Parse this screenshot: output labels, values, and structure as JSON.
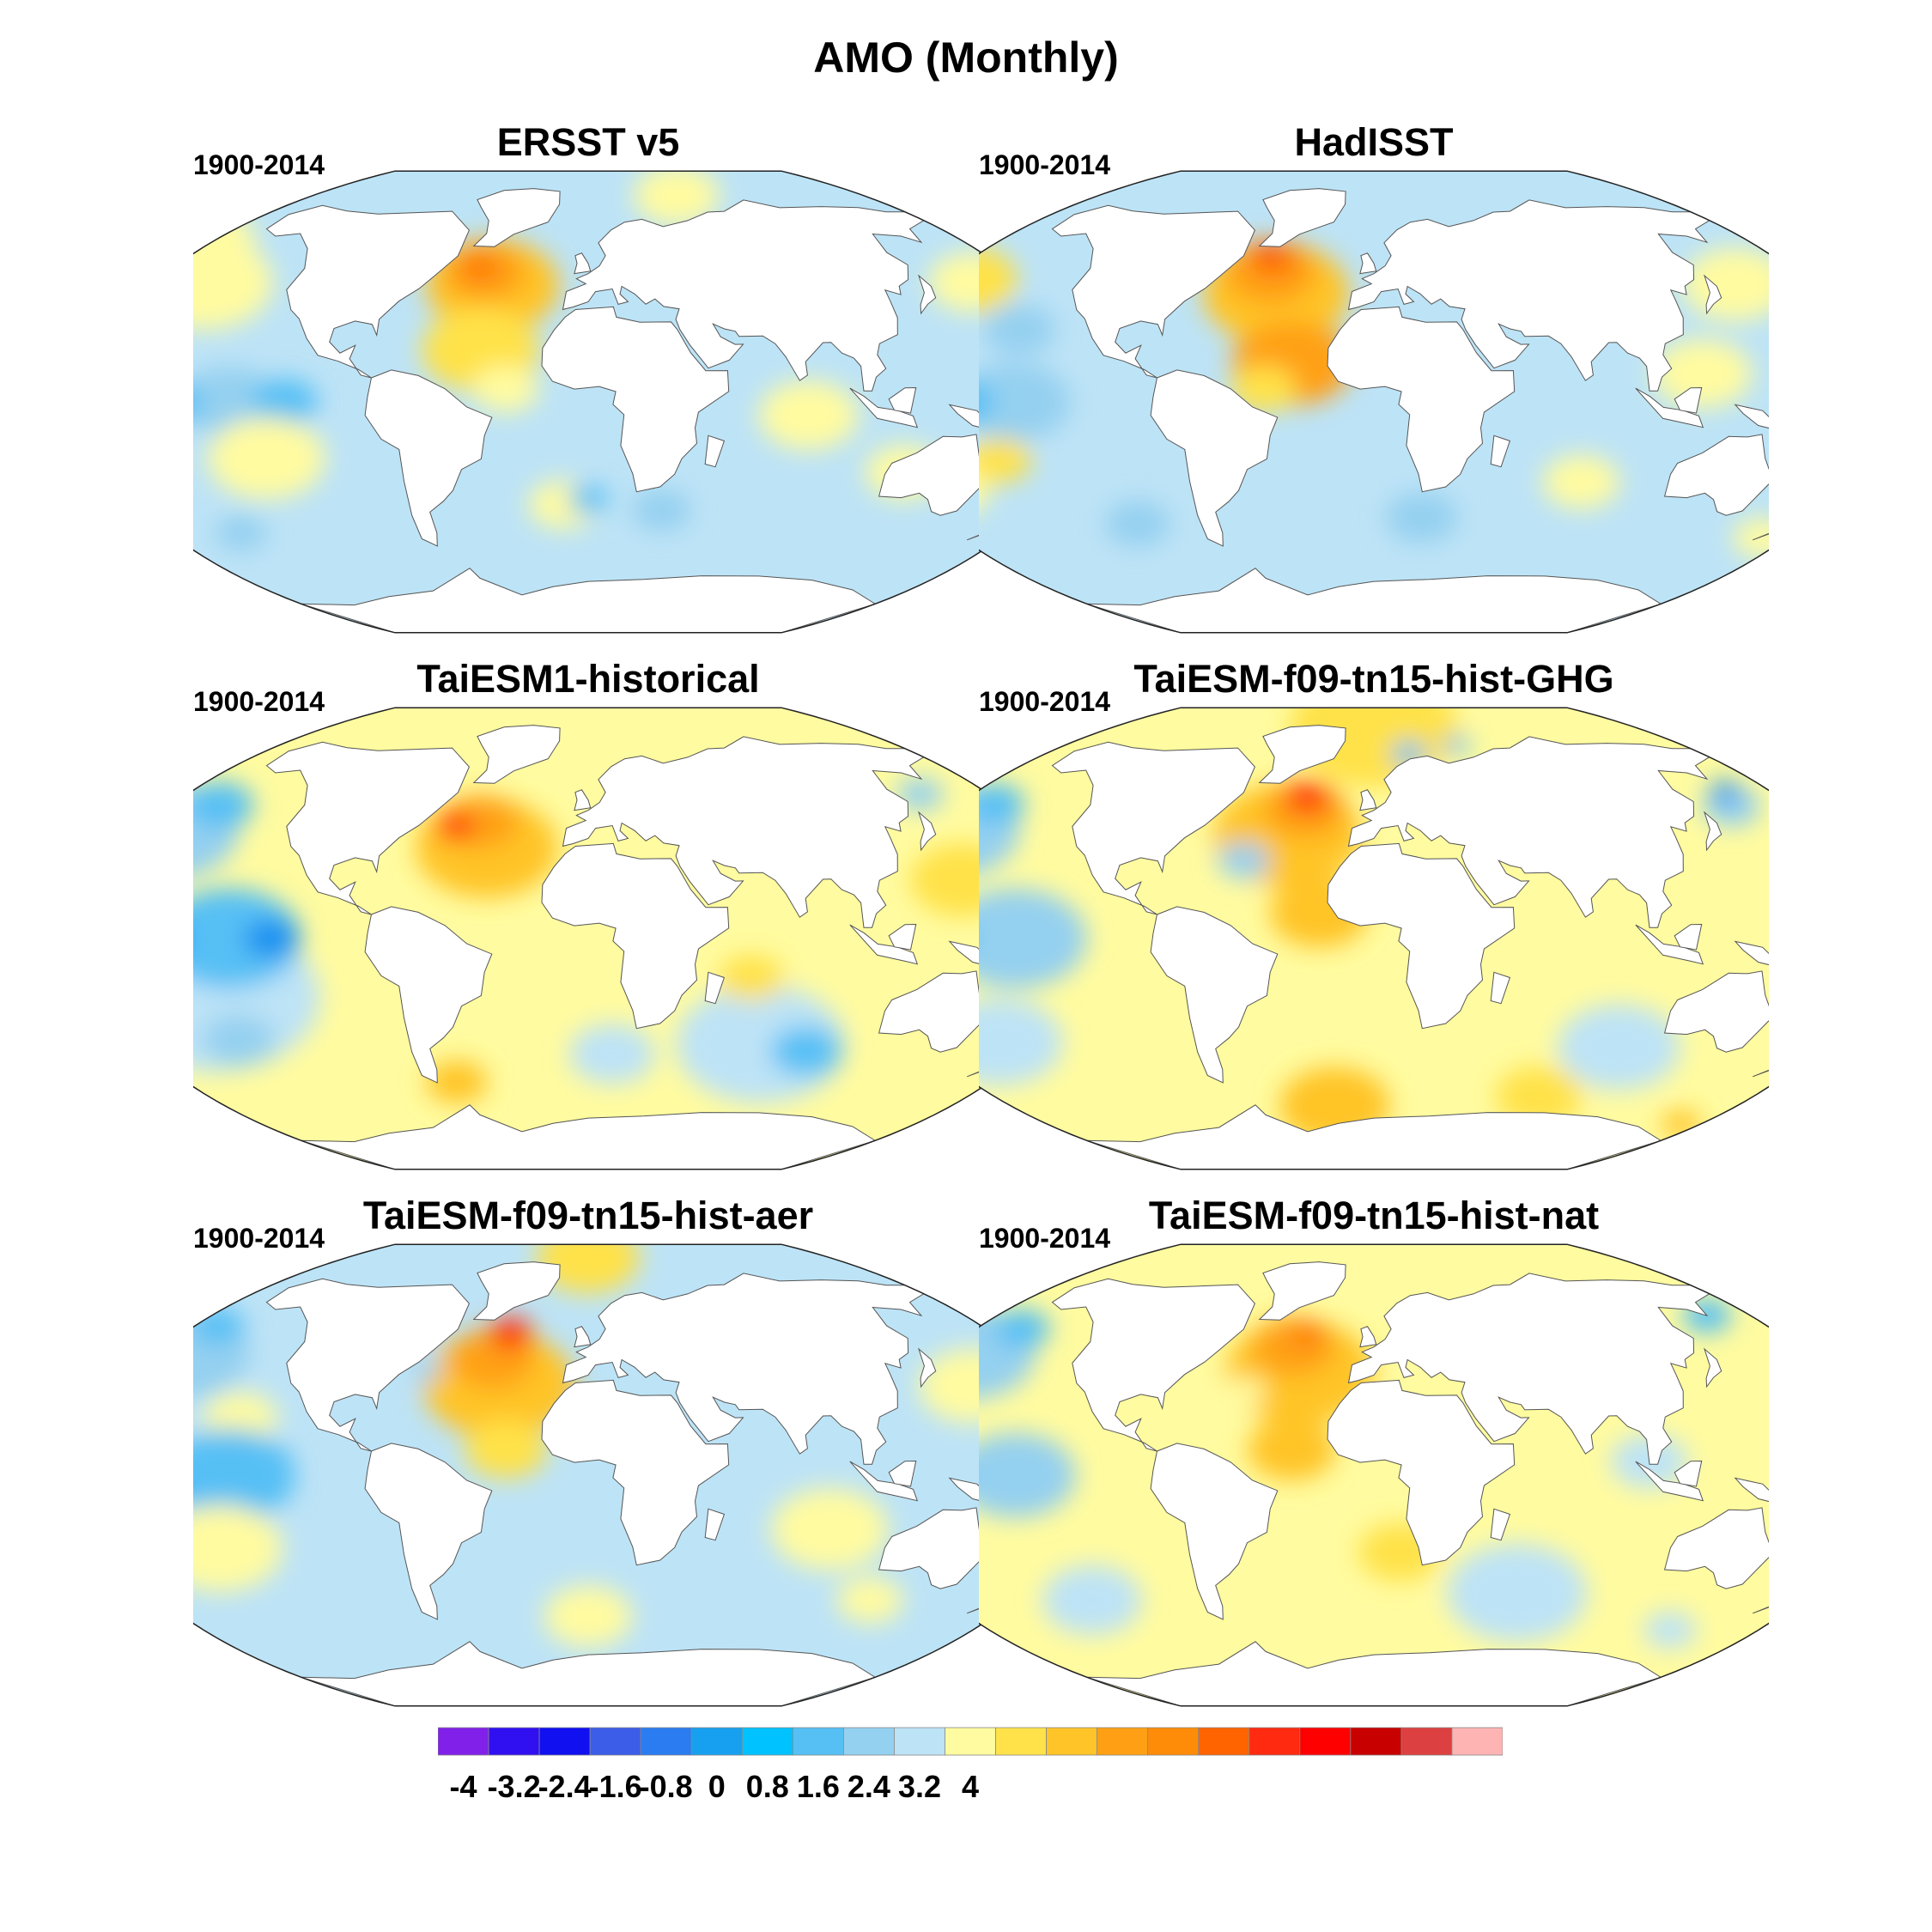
{
  "title": "AMO (Monthly)",
  "ocean_colors": {
    "neg_strong": "#1890f0",
    "neg_medium": "#56c0f5",
    "neg_light": "#94d0f0",
    "neg_pale": "#bde3f6",
    "pos_pale": "#fffba0",
    "pos_light": "#ffe24a",
    "pos_medium": "#ffc428",
    "pos_orange": "#ffa014",
    "pos_deep": "#ff7808",
    "pos_red": "#ff2a10",
    "land": "#ffffff",
    "coast": "#555555"
  },
  "panels": [
    {
      "id": "ersst",
      "title": "ERSST v5",
      "period": "1900-2014",
      "base": "neg_pale",
      "blobs": [
        {
          "lon": -40,
          "lat": 45,
          "r": 28,
          "c": "pos_medium"
        },
        {
          "lon": -45,
          "lat": 50,
          "r": 18,
          "c": "pos_orange"
        },
        {
          "lon": -48,
          "lat": 52,
          "r": 9,
          "c": "pos_deep"
        },
        {
          "lon": -40,
          "lat": 20,
          "r": 22,
          "c": "pos_light"
        },
        {
          "lon": -30,
          "lat": 5,
          "r": 12,
          "c": "pos_pale"
        },
        {
          "lon": -160,
          "lat": 40,
          "r": 30,
          "c": "pos_pale"
        },
        {
          "lon": 160,
          "lat": 40,
          "r": 20,
          "c": "pos_pale"
        },
        {
          "lon": -180,
          "lat": 55,
          "r": 20,
          "c": "pos_pale"
        },
        {
          "lon": 60,
          "lat": 80,
          "r": 30,
          "c": "pos_pale"
        },
        {
          "lon": -130,
          "lat": 0,
          "r": 18,
          "c": "neg_light"
        },
        {
          "lon": -150,
          "lat": 0,
          "r": 10,
          "c": "neg_medium"
        },
        {
          "lon": -110,
          "lat": 0,
          "r": 12,
          "c": "neg_medium"
        },
        {
          "lon": 170,
          "lat": 0,
          "r": 10,
          "c": "neg_light"
        },
        {
          "lon": -120,
          "lat": -20,
          "r": 22,
          "c": "pos_pale"
        },
        {
          "lon": 80,
          "lat": -5,
          "r": 18,
          "c": "pos_pale"
        },
        {
          "lon": 120,
          "lat": -25,
          "r": 15,
          "c": "pos_pale"
        },
        {
          "lon": -10,
          "lat": -40,
          "r": 14,
          "c": "pos_pale"
        },
        {
          "lon": 30,
          "lat": -42,
          "r": 12,
          "c": "neg_light"
        },
        {
          "lon": 0,
          "lat": -38,
          "r": 8,
          "c": "neg_medium"
        },
        {
          "lon": -150,
          "lat": -45,
          "r": 12,
          "c": "neg_light"
        }
      ]
    },
    {
      "id": "hadisst",
      "title": "HadISST",
      "period": "1900-2014",
      "base": "neg_pale",
      "blobs": [
        {
          "lon": -40,
          "lat": 42,
          "r": 30,
          "c": "pos_medium"
        },
        {
          "lon": -45,
          "lat": 50,
          "r": 20,
          "c": "pos_orange"
        },
        {
          "lon": -45,
          "lat": 55,
          "r": 11,
          "c": "pos_deep"
        },
        {
          "lon": -50,
          "lat": 57,
          "r": 6,
          "c": "pos_red"
        },
        {
          "lon": -30,
          "lat": 15,
          "r": 22,
          "c": "pos_orange"
        },
        {
          "lon": -40,
          "lat": 5,
          "r": 12,
          "c": "pos_light"
        },
        {
          "lon": -170,
          "lat": 40,
          "r": 22,
          "c": "pos_light"
        },
        {
          "lon": 150,
          "lat": 40,
          "r": 24,
          "c": "pos_pale"
        },
        {
          "lon": 120,
          "lat": 10,
          "r": 18,
          "c": "pos_pale"
        },
        {
          "lon": -135,
          "lat": 25,
          "r": 14,
          "c": "neg_light"
        },
        {
          "lon": -130,
          "lat": 0,
          "r": 20,
          "c": "neg_light"
        },
        {
          "lon": -150,
          "lat": 0,
          "r": 12,
          "c": "neg_medium"
        },
        {
          "lon": -170,
          "lat": -25,
          "r": 25,
          "c": "pos_pale"
        },
        {
          "lon": -140,
          "lat": -20,
          "r": 12,
          "c": "pos_light"
        },
        {
          "lon": 80,
          "lat": -30,
          "r": 15,
          "c": "pos_pale"
        },
        {
          "lon": 20,
          "lat": -45,
          "r": 15,
          "c": "neg_light"
        },
        {
          "lon": 170,
          "lat": -45,
          "r": 15,
          "c": "pos_pale"
        },
        {
          "lon": -100,
          "lat": -45,
          "r": 14,
          "c": "neg_light"
        }
      ]
    },
    {
      "id": "taiesm1",
      "title": "TaiESM1-historical",
      "period": "1900-2014",
      "base": "pos_pale",
      "blobs": [
        {
          "lon": -170,
          "lat": 35,
          "r": 30,
          "c": "neg_light"
        },
        {
          "lon": -160,
          "lat": 45,
          "r": 16,
          "c": "neg_medium"
        },
        {
          "lon": -140,
          "lat": -20,
          "r": 40,
          "c": "neg_pale"
        },
        {
          "lon": -140,
          "lat": -35,
          "r": 15,
          "c": "neg_light"
        },
        {
          "lon": -130,
          "lat": 0,
          "r": 26,
          "c": "neg_medium"
        },
        {
          "lon": -160,
          "lat": 0,
          "r": 14,
          "c": "neg_strong"
        },
        {
          "lon": -115,
          "lat": 0,
          "r": 10,
          "c": "neg_strong"
        },
        {
          "lon": 170,
          "lat": 0,
          "r": 14,
          "c": "neg_medium"
        },
        {
          "lon": 70,
          "lat": -40,
          "r": 35,
          "c": "neg_pale"
        },
        {
          "lon": 90,
          "lat": -42,
          "r": 15,
          "c": "neg_medium"
        },
        {
          "lon": 10,
          "lat": -45,
          "r": 18,
          "c": "neg_pale"
        },
        {
          "lon": 150,
          "lat": 50,
          "r": 12,
          "c": "neg_light"
        },
        {
          "lon": -40,
          "lat": 35,
          "r": 28,
          "c": "pos_medium"
        },
        {
          "lon": -45,
          "lat": 45,
          "r": 16,
          "c": "pos_orange"
        },
        {
          "lon": -55,
          "lat": 43,
          "r": 8,
          "c": "pos_red"
        },
        {
          "lon": 140,
          "lat": 20,
          "r": 20,
          "c": "pos_light"
        },
        {
          "lon": -60,
          "lat": -55,
          "r": 14,
          "c": "pos_medium"
        },
        {
          "lon": 60,
          "lat": -15,
          "r": 12,
          "c": "pos_light"
        }
      ]
    },
    {
      "id": "ghg",
      "title": "TaiESM-f09-tn15-hist-GHG",
      "period": "1900-2014",
      "base": "pos_pale",
      "blobs": [
        {
          "lon": 0,
          "lat": 82,
          "r": 60,
          "c": "pos_light"
        },
        {
          "lon": 20,
          "lat": 72,
          "r": 10,
          "c": "neg_medium"
        },
        {
          "lon": 50,
          "lat": 75,
          "r": 8,
          "c": "neg_medium"
        },
        {
          "lon": -170,
          "lat": 35,
          "r": 28,
          "c": "neg_light"
        },
        {
          "lon": -165,
          "lat": 45,
          "r": 14,
          "c": "neg_medium"
        },
        {
          "lon": 155,
          "lat": 45,
          "r": 14,
          "c": "neg_light"
        },
        {
          "lon": 160,
          "lat": 50,
          "r": 8,
          "c": "neg_strong"
        },
        {
          "lon": -130,
          "lat": 0,
          "r": 26,
          "c": "neg_light"
        },
        {
          "lon": -160,
          "lat": 0,
          "r": 14,
          "c": "neg_medium"
        },
        {
          "lon": 170,
          "lat": -5,
          "r": 12,
          "c": "neg_pale"
        },
        {
          "lon": -150,
          "lat": -35,
          "r": 26,
          "c": "neg_pale"
        },
        {
          "lon": 100,
          "lat": -40,
          "r": 26,
          "c": "neg_pale"
        },
        {
          "lon": -35,
          "lat": 40,
          "r": 30,
          "c": "pos_medium"
        },
        {
          "lon": -30,
          "lat": 50,
          "r": 18,
          "c": "pos_orange"
        },
        {
          "lon": -30,
          "lat": 55,
          "r": 10,
          "c": "pos_red"
        },
        {
          "lon": -50,
          "lat": 30,
          "r": 10,
          "c": "neg_light"
        },
        {
          "lon": -20,
          "lat": 10,
          "r": 18,
          "c": "pos_medium"
        },
        {
          "lon": -20,
          "lat": -65,
          "r": 28,
          "c": "pos_medium"
        },
        {
          "lon": 80,
          "lat": -60,
          "r": 22,
          "c": "pos_light"
        },
        {
          "lon": 170,
          "lat": -65,
          "r": 14,
          "c": "pos_medium"
        }
      ]
    },
    {
      "id": "aer",
      "title": "TaiESM-f09-tn15-hist-aer",
      "period": "1900-2014",
      "base": "neg_pale",
      "blobs": [
        {
          "lon": 0,
          "lat": 85,
          "r": 40,
          "c": "pos_light"
        },
        {
          "lon": -170,
          "lat": 40,
          "r": 30,
          "c": "neg_light"
        },
        {
          "lon": -170,
          "lat": 50,
          "r": 14,
          "c": "neg_medium"
        },
        {
          "lon": -130,
          "lat": 20,
          "r": 14,
          "c": "pos_pale"
        },
        {
          "lon": 150,
          "lat": 30,
          "r": 22,
          "c": "pos_pale"
        },
        {
          "lon": -130,
          "lat": 0,
          "r": 24,
          "c": "neg_medium"
        },
        {
          "lon": -160,
          "lat": 0,
          "r": 12,
          "c": "neg_strong"
        },
        {
          "lon": -140,
          "lat": -25,
          "r": 24,
          "c": "pos_pale"
        },
        {
          "lon": 90,
          "lat": -20,
          "r": 22,
          "c": "pos_pale"
        },
        {
          "lon": 0,
          "lat": -55,
          "r": 20,
          "c": "pos_pale"
        },
        {
          "lon": 120,
          "lat": -45,
          "r": 15,
          "c": "pos_pale"
        },
        {
          "lon": -35,
          "lat": 35,
          "r": 30,
          "c": "pos_medium"
        },
        {
          "lon": -40,
          "lat": 45,
          "r": 18,
          "c": "pos_orange"
        },
        {
          "lon": -35,
          "lat": 55,
          "r": 10,
          "c": "pos_red"
        },
        {
          "lon": -65,
          "lat": 40,
          "r": 6,
          "c": "neg_light"
        },
        {
          "lon": -30,
          "lat": 10,
          "r": 15,
          "c": "pos_light"
        }
      ]
    },
    {
      "id": "nat",
      "title": "TaiESM-f09-tn15-hist-nat",
      "period": "1900-2014",
      "base": "pos_pale",
      "blobs": [
        {
          "lon": -170,
          "lat": 40,
          "r": 30,
          "c": "neg_light"
        },
        {
          "lon": -160,
          "lat": 50,
          "r": 14,
          "c": "neg_medium"
        },
        {
          "lon": 160,
          "lat": 55,
          "r": 14,
          "c": "neg_medium"
        },
        {
          "lon": -130,
          "lat": 0,
          "r": 22,
          "c": "neg_light"
        },
        {
          "lon": -160,
          "lat": 0,
          "r": 12,
          "c": "neg_medium"
        },
        {
          "lon": -120,
          "lat": -45,
          "r": 22,
          "c": "neg_pale"
        },
        {
          "lon": 60,
          "lat": -45,
          "r": 30,
          "c": "neg_pale"
        },
        {
          "lon": 140,
          "lat": -55,
          "r": 14,
          "c": "neg_pale"
        },
        {
          "lon": 100,
          "lat": 5,
          "r": 14,
          "c": "neg_pale"
        },
        {
          "lon": -30,
          "lat": 40,
          "r": 30,
          "c": "pos_medium"
        },
        {
          "lon": -35,
          "lat": 50,
          "r": 18,
          "c": "pos_orange"
        },
        {
          "lon": -30,
          "lat": 55,
          "r": 8,
          "c": "pos_deep"
        },
        {
          "lon": -50,
          "lat": 32,
          "r": 8,
          "c": "pos_pale"
        },
        {
          "lon": -30,
          "lat": 10,
          "r": 16,
          "c": "pos_medium"
        },
        {
          "lon": 10,
          "lat": -30,
          "r": 16,
          "c": "pos_light"
        }
      ]
    }
  ],
  "colorbar": {
    "colors": [
      "#8020e8",
      "#3010f0",
      "#1010f0",
      "#3c5de8",
      "#2a7cf0",
      "#18a0f0",
      "#00c2ff",
      "#56c0f5",
      "#94d0f0",
      "#bde3f6",
      "#fffba0",
      "#ffe24a",
      "#ffc428",
      "#ffa014",
      "#ff8c08",
      "#ff6400",
      "#ff2a10",
      "#ff0000",
      "#c80000",
      "#dc4040",
      "#ffb4b4"
    ],
    "ticks": [
      {
        "value": -4,
        "label": "-4"
      },
      {
        "value": -3.2,
        "label": "-3.2"
      },
      {
        "value": -2.4,
        "label": "-2.4"
      },
      {
        "value": -1.6,
        "label": "-1.6"
      },
      {
        "value": -0.8,
        "label": "-0.8"
      },
      {
        "value": 0,
        "label": "0"
      },
      {
        "value": 0.8,
        "label": "0.8"
      },
      {
        "value": 1.6,
        "label": "1.6"
      },
      {
        "value": 2.4,
        "label": "2.4"
      },
      {
        "value": 3.2,
        "label": "3.2"
      },
      {
        "value": 4,
        "label": "4"
      }
    ]
  }
}
